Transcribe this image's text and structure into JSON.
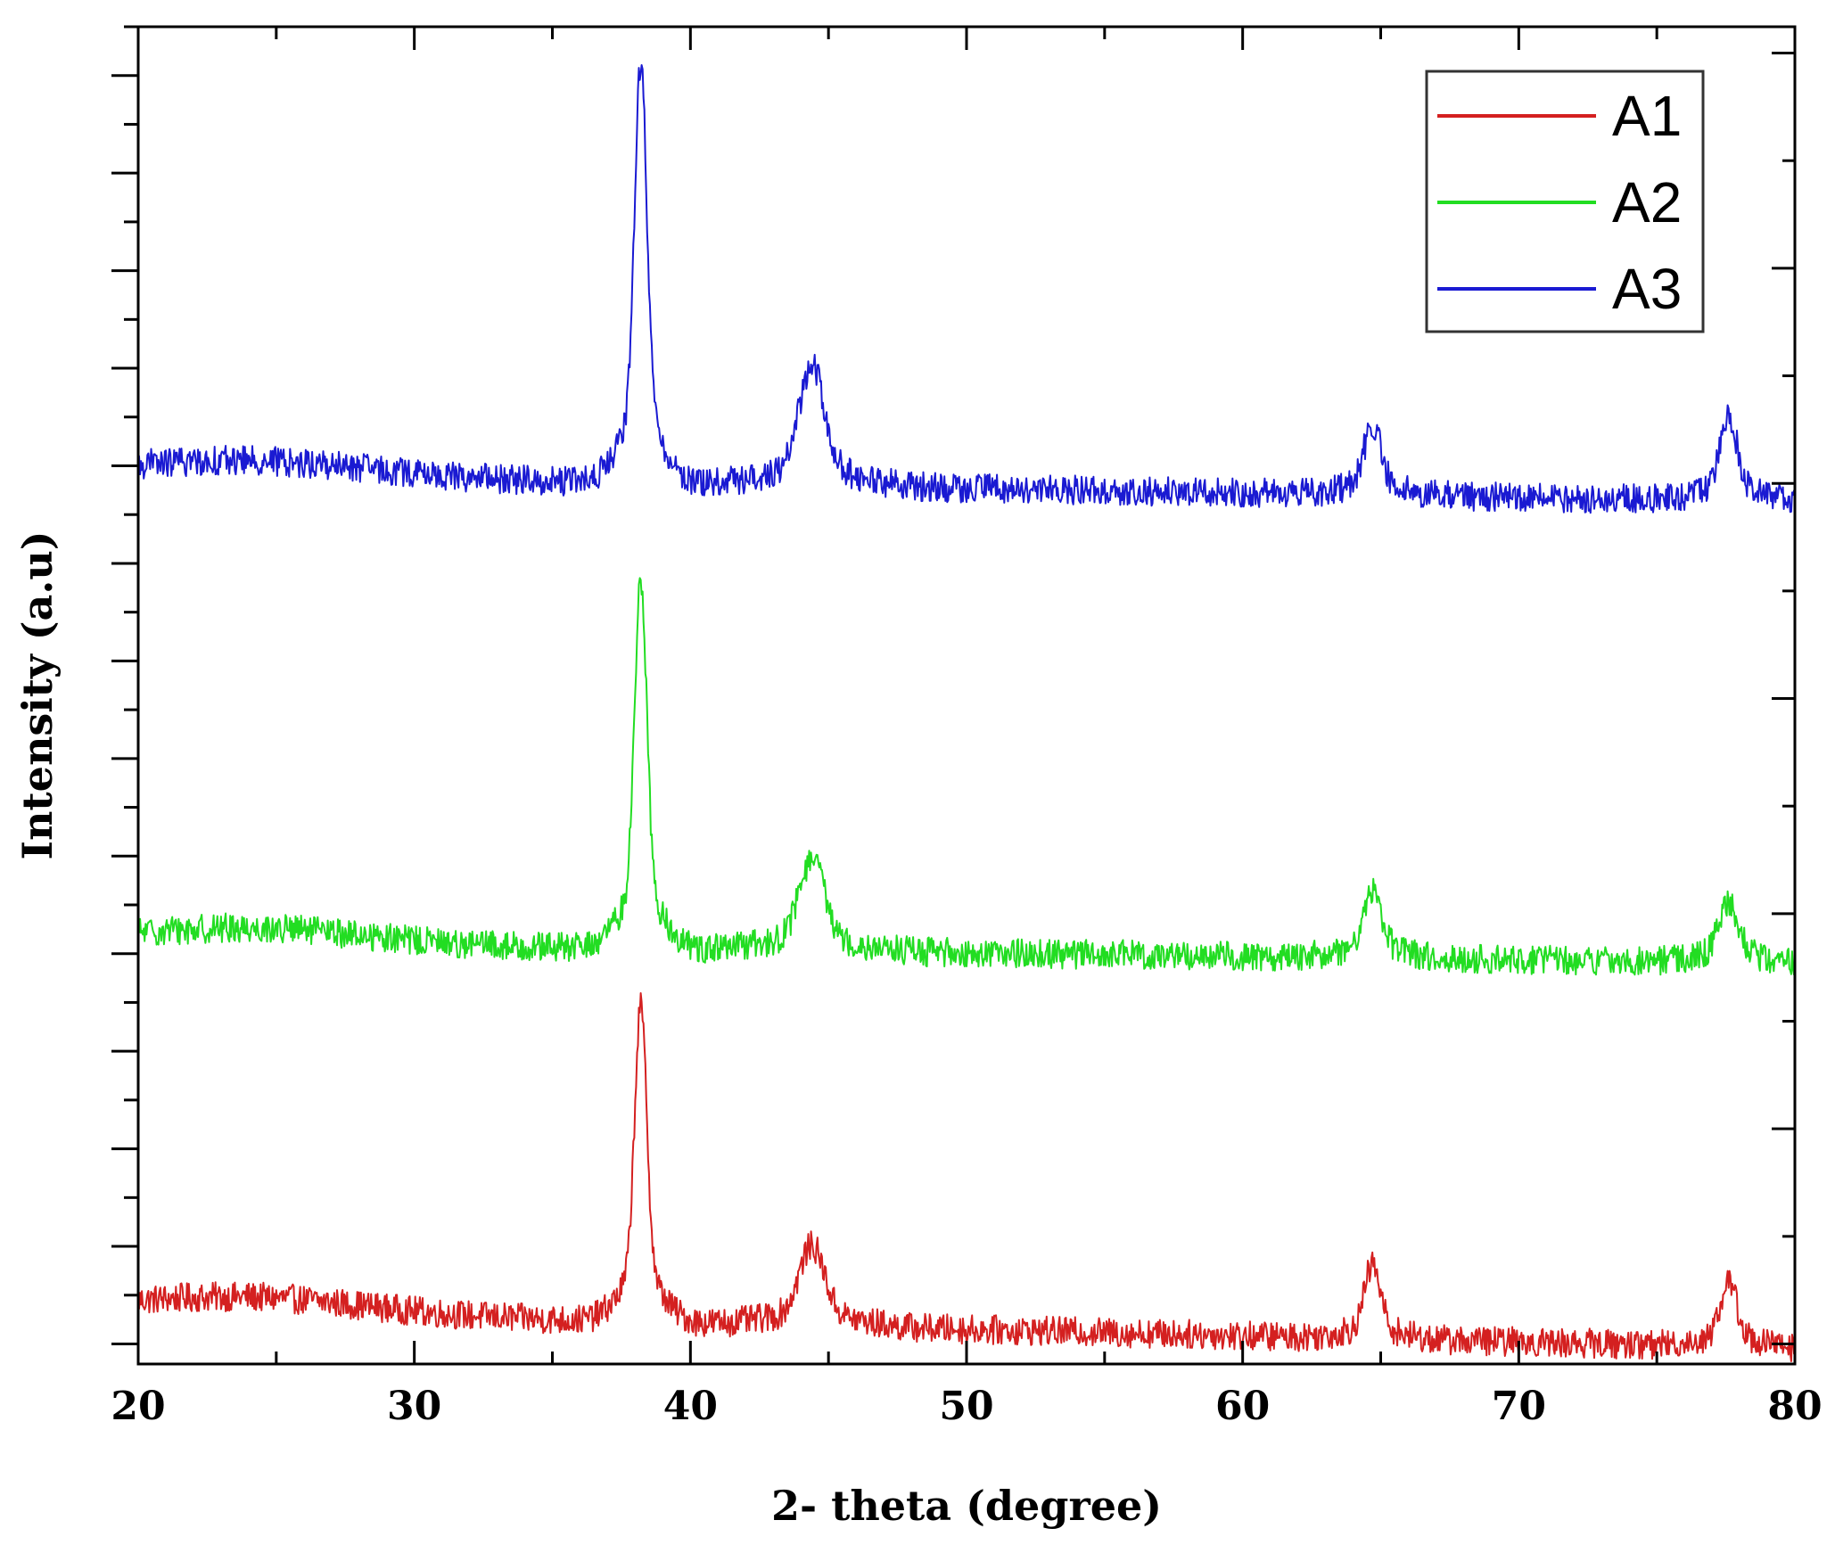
{
  "chart_data": {
    "type": "line",
    "title": "",
    "xlabel": "2- theta (degree)",
    "ylabel": "Intensity (a.u)",
    "xlim": [
      20,
      80
    ],
    "xticks": [
      20,
      30,
      40,
      50,
      60,
      70,
      80
    ],
    "ylim": [
      0,
      1
    ],
    "y_tick_labels_shown": false,
    "grid": false,
    "legend_position": "top-right",
    "series": [
      {
        "name": "A1",
        "color": "#d42020",
        "baseline_left": 0.04,
        "baseline_right": 0.012,
        "noise": 0.011,
        "peaks": [
          {
            "x": 38.2,
            "height": 0.235,
            "width": 0.22
          },
          {
            "x": 44.4,
            "height": 0.06,
            "width": 0.45
          },
          {
            "x": 64.7,
            "height": 0.055,
            "width": 0.28
          },
          {
            "x": 77.6,
            "height": 0.048,
            "width": 0.3
          }
        ]
      },
      {
        "name": "A2",
        "color": "#22dd22",
        "baseline_left": 0.315,
        "baseline_right": 0.3,
        "noise": 0.011,
        "peaks": [
          {
            "x": 38.2,
            "height": 0.275,
            "width": 0.22
          },
          {
            "x": 44.4,
            "height": 0.068,
            "width": 0.45
          },
          {
            "x": 64.7,
            "height": 0.052,
            "width": 0.32
          },
          {
            "x": 77.6,
            "height": 0.045,
            "width": 0.34
          }
        ]
      },
      {
        "name": "A3",
        "color": "#1a1ad2",
        "baseline_left": 0.665,
        "baseline_right": 0.645,
        "noise": 0.011,
        "peaks": [
          {
            "x": 38.2,
            "height": 0.315,
            "width": 0.22
          },
          {
            "x": 44.4,
            "height": 0.09,
            "width": 0.45
          },
          {
            "x": 64.7,
            "height": 0.05,
            "width": 0.32
          },
          {
            "x": 77.6,
            "height": 0.064,
            "width": 0.3
          }
        ]
      }
    ]
  }
}
